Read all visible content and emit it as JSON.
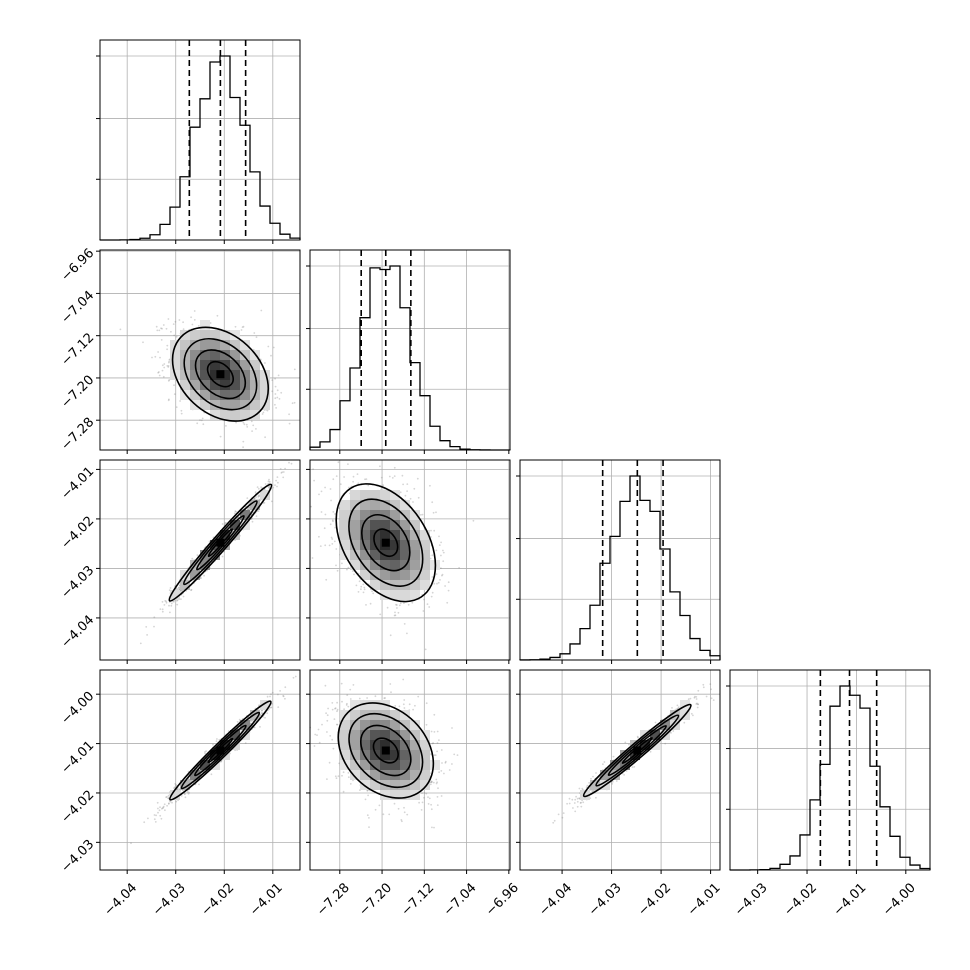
{
  "chart_data": {
    "type": "corner",
    "grid": true,
    "parameters": [
      {
        "index": 0,
        "range": [
          -4.0456,
          -4.0044
        ],
        "ticks": [
          -4.04,
          -4.03,
          -4.02,
          -4.01
        ],
        "tick_labels": [
          "−4.04",
          "−4.03",
          "−4.02",
          "−4.01"
        ],
        "mean": -4.0208,
        "sigma": 0.0051,
        "quantiles": [
          -4.0272,
          -4.0208,
          -4.0156
        ]
      },
      {
        "index": 1,
        "range": [
          -7.3364,
          -6.9578
        ],
        "ticks": [
          -7.28,
          -7.2,
          -7.12,
          -7.04,
          -6.96
        ],
        "tick_labels": [
          "−7.28",
          "−7.20",
          "−7.12",
          "−7.04",
          "−6.96"
        ],
        "mean": -7.193,
        "sigma": 0.0458,
        "quantiles": [
          -7.2395,
          -7.193,
          -7.1455
        ]
      },
      {
        "index": 2,
        "range": [
          -4.0485,
          -4.0081
        ],
        "ticks": [
          -4.04,
          -4.03,
          -4.02,
          -4.01
        ],
        "tick_labels": [
          "−4.04",
          "−4.03",
          "−4.02",
          "−4.01"
        ],
        "mean": -4.0248,
        "sigma": 0.0057,
        "quantiles": [
          -4.0318,
          -4.0248,
          -4.0196
        ]
      },
      {
        "index": 3,
        "range": [
          -4.0356,
          -3.9951
        ],
        "ticks": [
          -4.03,
          -4.02,
          -4.01,
          -4.0
        ],
        "tick_labels": [
          "−4.03",
          "−4.02",
          "−4.01",
          "−4.00"
        ],
        "mean": -4.0114,
        "sigma": 0.0049,
        "quantiles": [
          -4.0173,
          -4.0114,
          -4.0059
        ]
      }
    ],
    "diag_y_ticks": [
      0.33,
      0.66,
      1.0
    ],
    "correlations": {
      "1-0": -0.35,
      "2-0": 0.98,
      "2-1": -0.35,
      "3-0": 0.98,
      "3-1": -0.3,
      "3-2": 0.98
    },
    "contour_levels": [
      0.5,
      1.0,
      1.5,
      2.0
    ]
  }
}
